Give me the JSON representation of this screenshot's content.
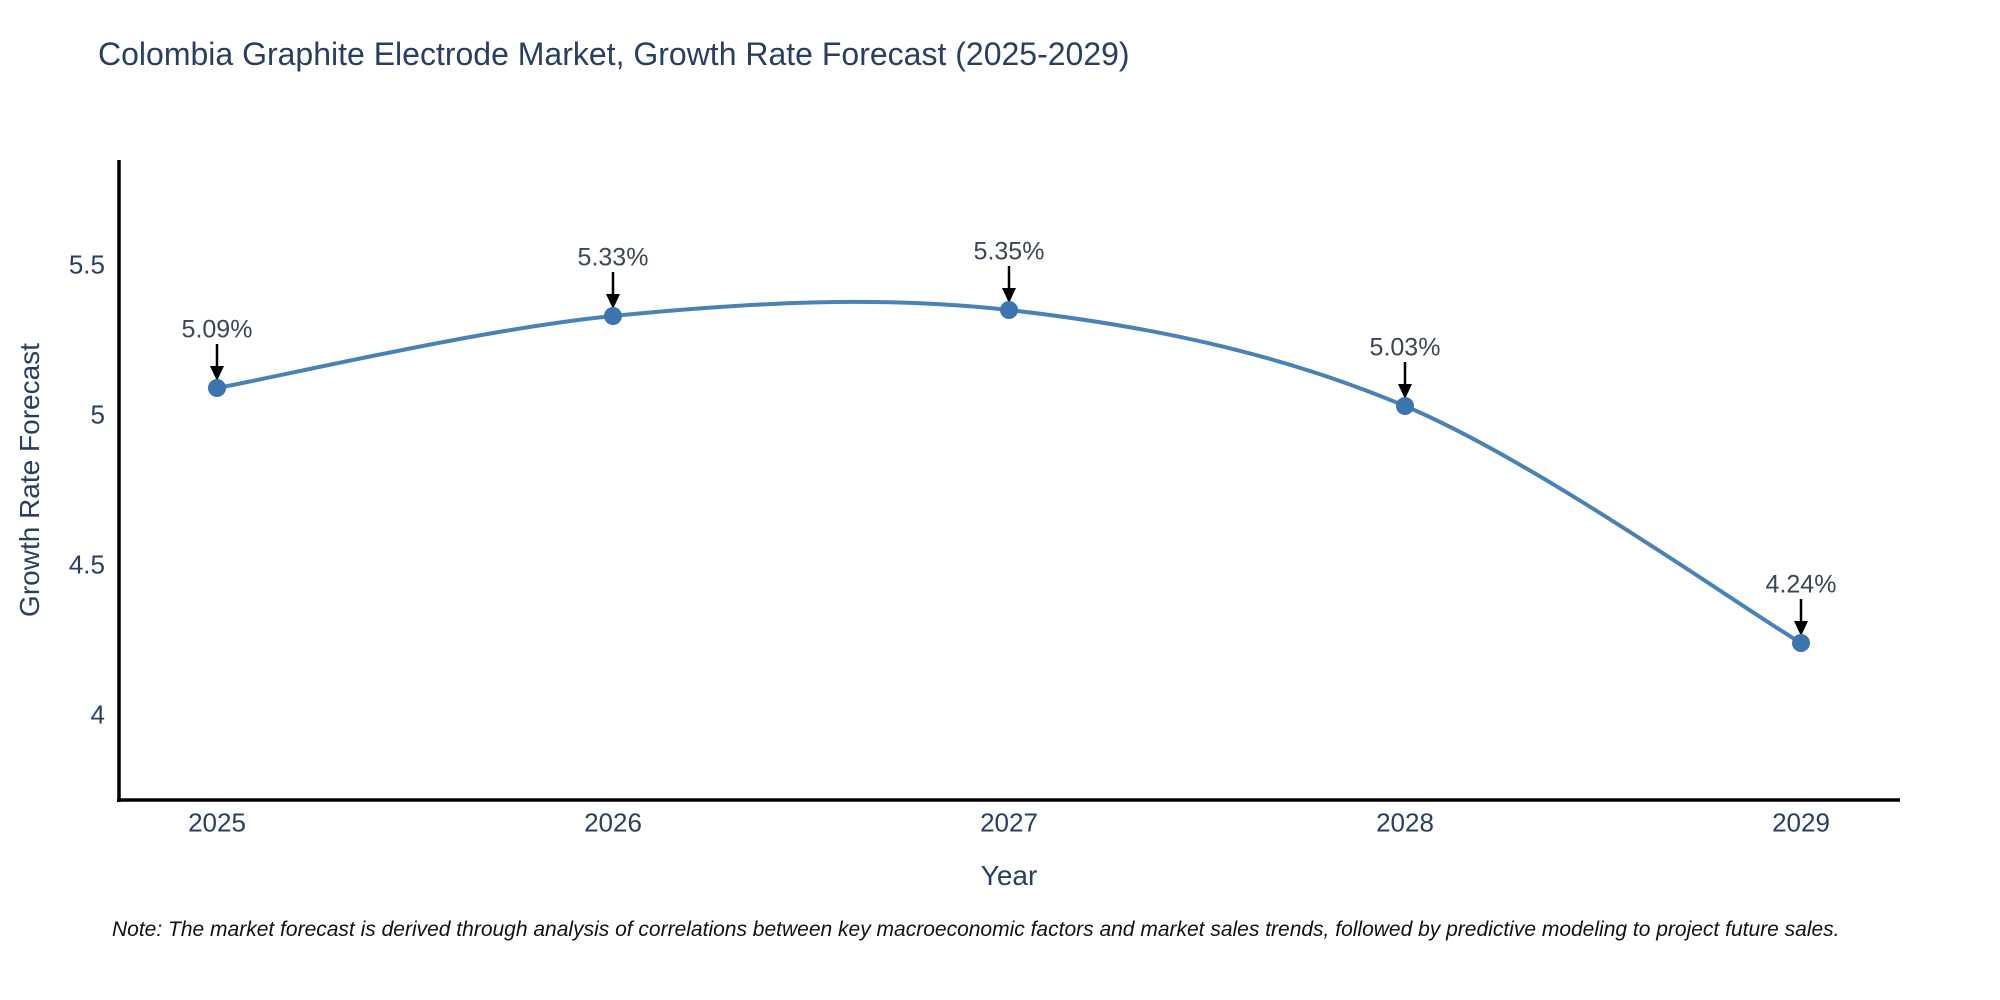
{
  "chart_data": {
    "type": "line",
    "curve": "spline",
    "title": "Colombia Graphite Electrode Market, Growth Rate Forecast (2025-2029)",
    "xlabel": "Year",
    "ylabel": "Growth Rate Forecast",
    "x": [
      2025,
      2026,
      2027,
      2028,
      2029
    ],
    "y": [
      5.09,
      5.33,
      5.35,
      5.03,
      4.24
    ],
    "point_labels": [
      "5.09%",
      "5.33%",
      "5.35%",
      "5.03%",
      "4.24%"
    ],
    "yticks": [
      5.5,
      5,
      4.5,
      4
    ],
    "ylim": [
      3.72,
      5.85
    ],
    "grid": false,
    "legend_position": "none",
    "colors": {
      "line": "#4a82b6",
      "marker": "#3a76ad",
      "axis": "#000000",
      "title_text": "#2a3f5f",
      "annotation_arrow": "#000000"
    }
  },
  "note": "Note: The market forecast is derived through analysis of correlations between key macroeconomic factors and market sales trends, followed by predictive modeling to project future sales."
}
